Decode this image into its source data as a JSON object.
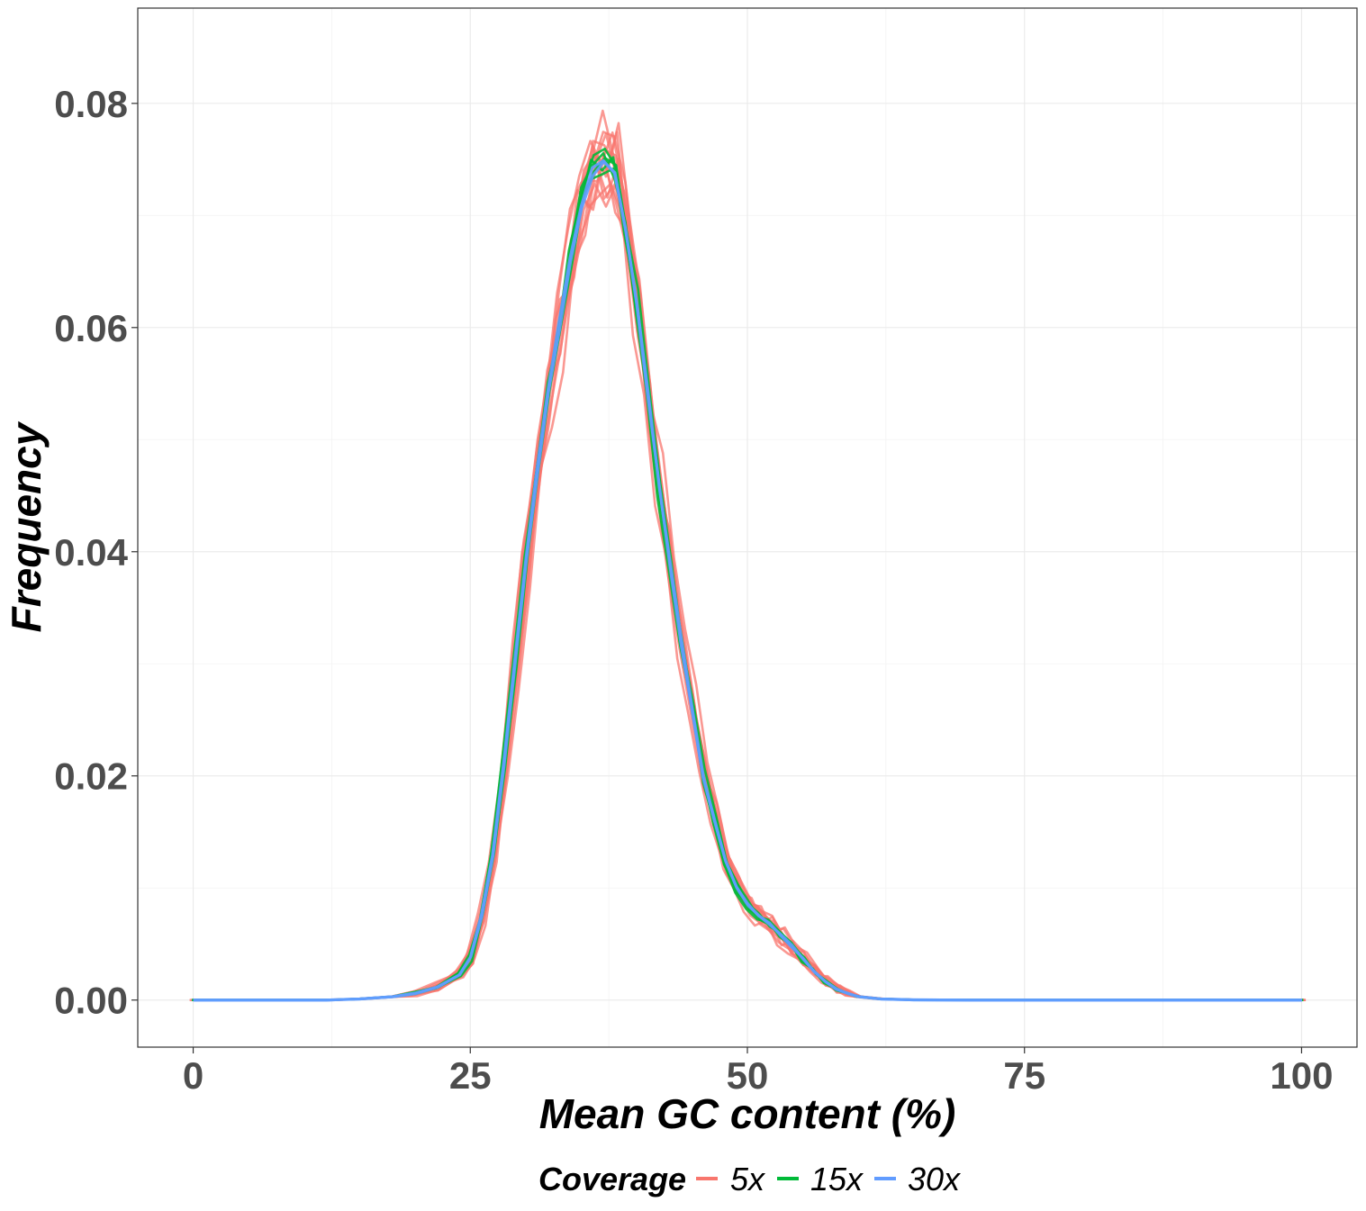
{
  "chart_data": {
    "type": "line",
    "title": "",
    "xlabel": "Mean GC content (%)",
    "ylabel": "Frequency",
    "xlim": [
      -5,
      105
    ],
    "ylim": [
      -0.0042,
      0.0885
    ],
    "x_ticks": [
      0,
      25,
      50,
      75,
      100
    ],
    "x_tick_labels": [
      "0",
      "25",
      "50",
      "75",
      "100"
    ],
    "y_ticks": [
      0.0,
      0.02,
      0.04,
      0.06,
      0.08
    ],
    "y_tick_labels": [
      "0.00",
      "0.02",
      "0.04",
      "0.06",
      "0.08"
    ],
    "grid": true,
    "legend": {
      "title": "Coverage",
      "position": "bottom",
      "entries": [
        {
          "label": "5x",
          "color": "#F8766D"
        },
        {
          "label": "15x",
          "color": "#00BA38"
        },
        {
          "label": "30x",
          "color": "#619CFF"
        }
      ]
    },
    "x": [
      0,
      12,
      15,
      18,
      20,
      22,
      24,
      25,
      26,
      27,
      28,
      29,
      30,
      31,
      32,
      33,
      34,
      35,
      36,
      37,
      38,
      39,
      40,
      41,
      42,
      43,
      44,
      45,
      46,
      47,
      48,
      49,
      50,
      51,
      52,
      53,
      54,
      55,
      56,
      57,
      58,
      59,
      60,
      62,
      65,
      70,
      80,
      90,
      100
    ],
    "series": [
      {
        "name": "5x",
        "color": "#F8766D",
        "replicates": 14,
        "values": [
          0,
          0,
          0.0001,
          0.0003,
          0.0006,
          0.0012,
          0.0023,
          0.0038,
          0.0075,
          0.013,
          0.021,
          0.03,
          0.039,
          0.047,
          0.054,
          0.06,
          0.066,
          0.071,
          0.074,
          0.075,
          0.074,
          0.069,
          0.062,
          0.054,
          0.046,
          0.039,
          0.032,
          0.026,
          0.02,
          0.016,
          0.0125,
          0.01,
          0.0085,
          0.0075,
          0.0068,
          0.0058,
          0.0048,
          0.0037,
          0.0026,
          0.0017,
          0.001,
          0.0006,
          0.0003,
          0.0001,
          2e-05,
          0,
          0,
          0,
          0
        ]
      },
      {
        "name": "15x",
        "color": "#00BA38",
        "replicates": 5,
        "values": [
          0,
          0,
          0.0001,
          0.0003,
          0.0006,
          0.0012,
          0.0023,
          0.0038,
          0.0075,
          0.013,
          0.021,
          0.03,
          0.039,
          0.047,
          0.054,
          0.06,
          0.066,
          0.071,
          0.074,
          0.075,
          0.074,
          0.069,
          0.062,
          0.054,
          0.046,
          0.039,
          0.032,
          0.026,
          0.02,
          0.016,
          0.0125,
          0.01,
          0.0085,
          0.0075,
          0.0068,
          0.0058,
          0.0048,
          0.0037,
          0.0026,
          0.0017,
          0.001,
          0.0006,
          0.0003,
          0.0001,
          2e-05,
          0,
          0,
          0,
          0
        ]
      },
      {
        "name": "30x",
        "color": "#619CFF",
        "replicates": 2,
        "values": [
          0,
          0,
          0.0001,
          0.0003,
          0.0006,
          0.0012,
          0.0023,
          0.0038,
          0.0075,
          0.013,
          0.021,
          0.03,
          0.039,
          0.047,
          0.054,
          0.06,
          0.066,
          0.071,
          0.074,
          0.075,
          0.074,
          0.069,
          0.062,
          0.054,
          0.046,
          0.039,
          0.032,
          0.026,
          0.02,
          0.016,
          0.0125,
          0.01,
          0.0085,
          0.0075,
          0.0068,
          0.0058,
          0.0048,
          0.0037,
          0.0026,
          0.0017,
          0.001,
          0.0006,
          0.0003,
          0.0001,
          2e-05,
          0,
          0,
          0,
          0
        ]
      }
    ]
  }
}
